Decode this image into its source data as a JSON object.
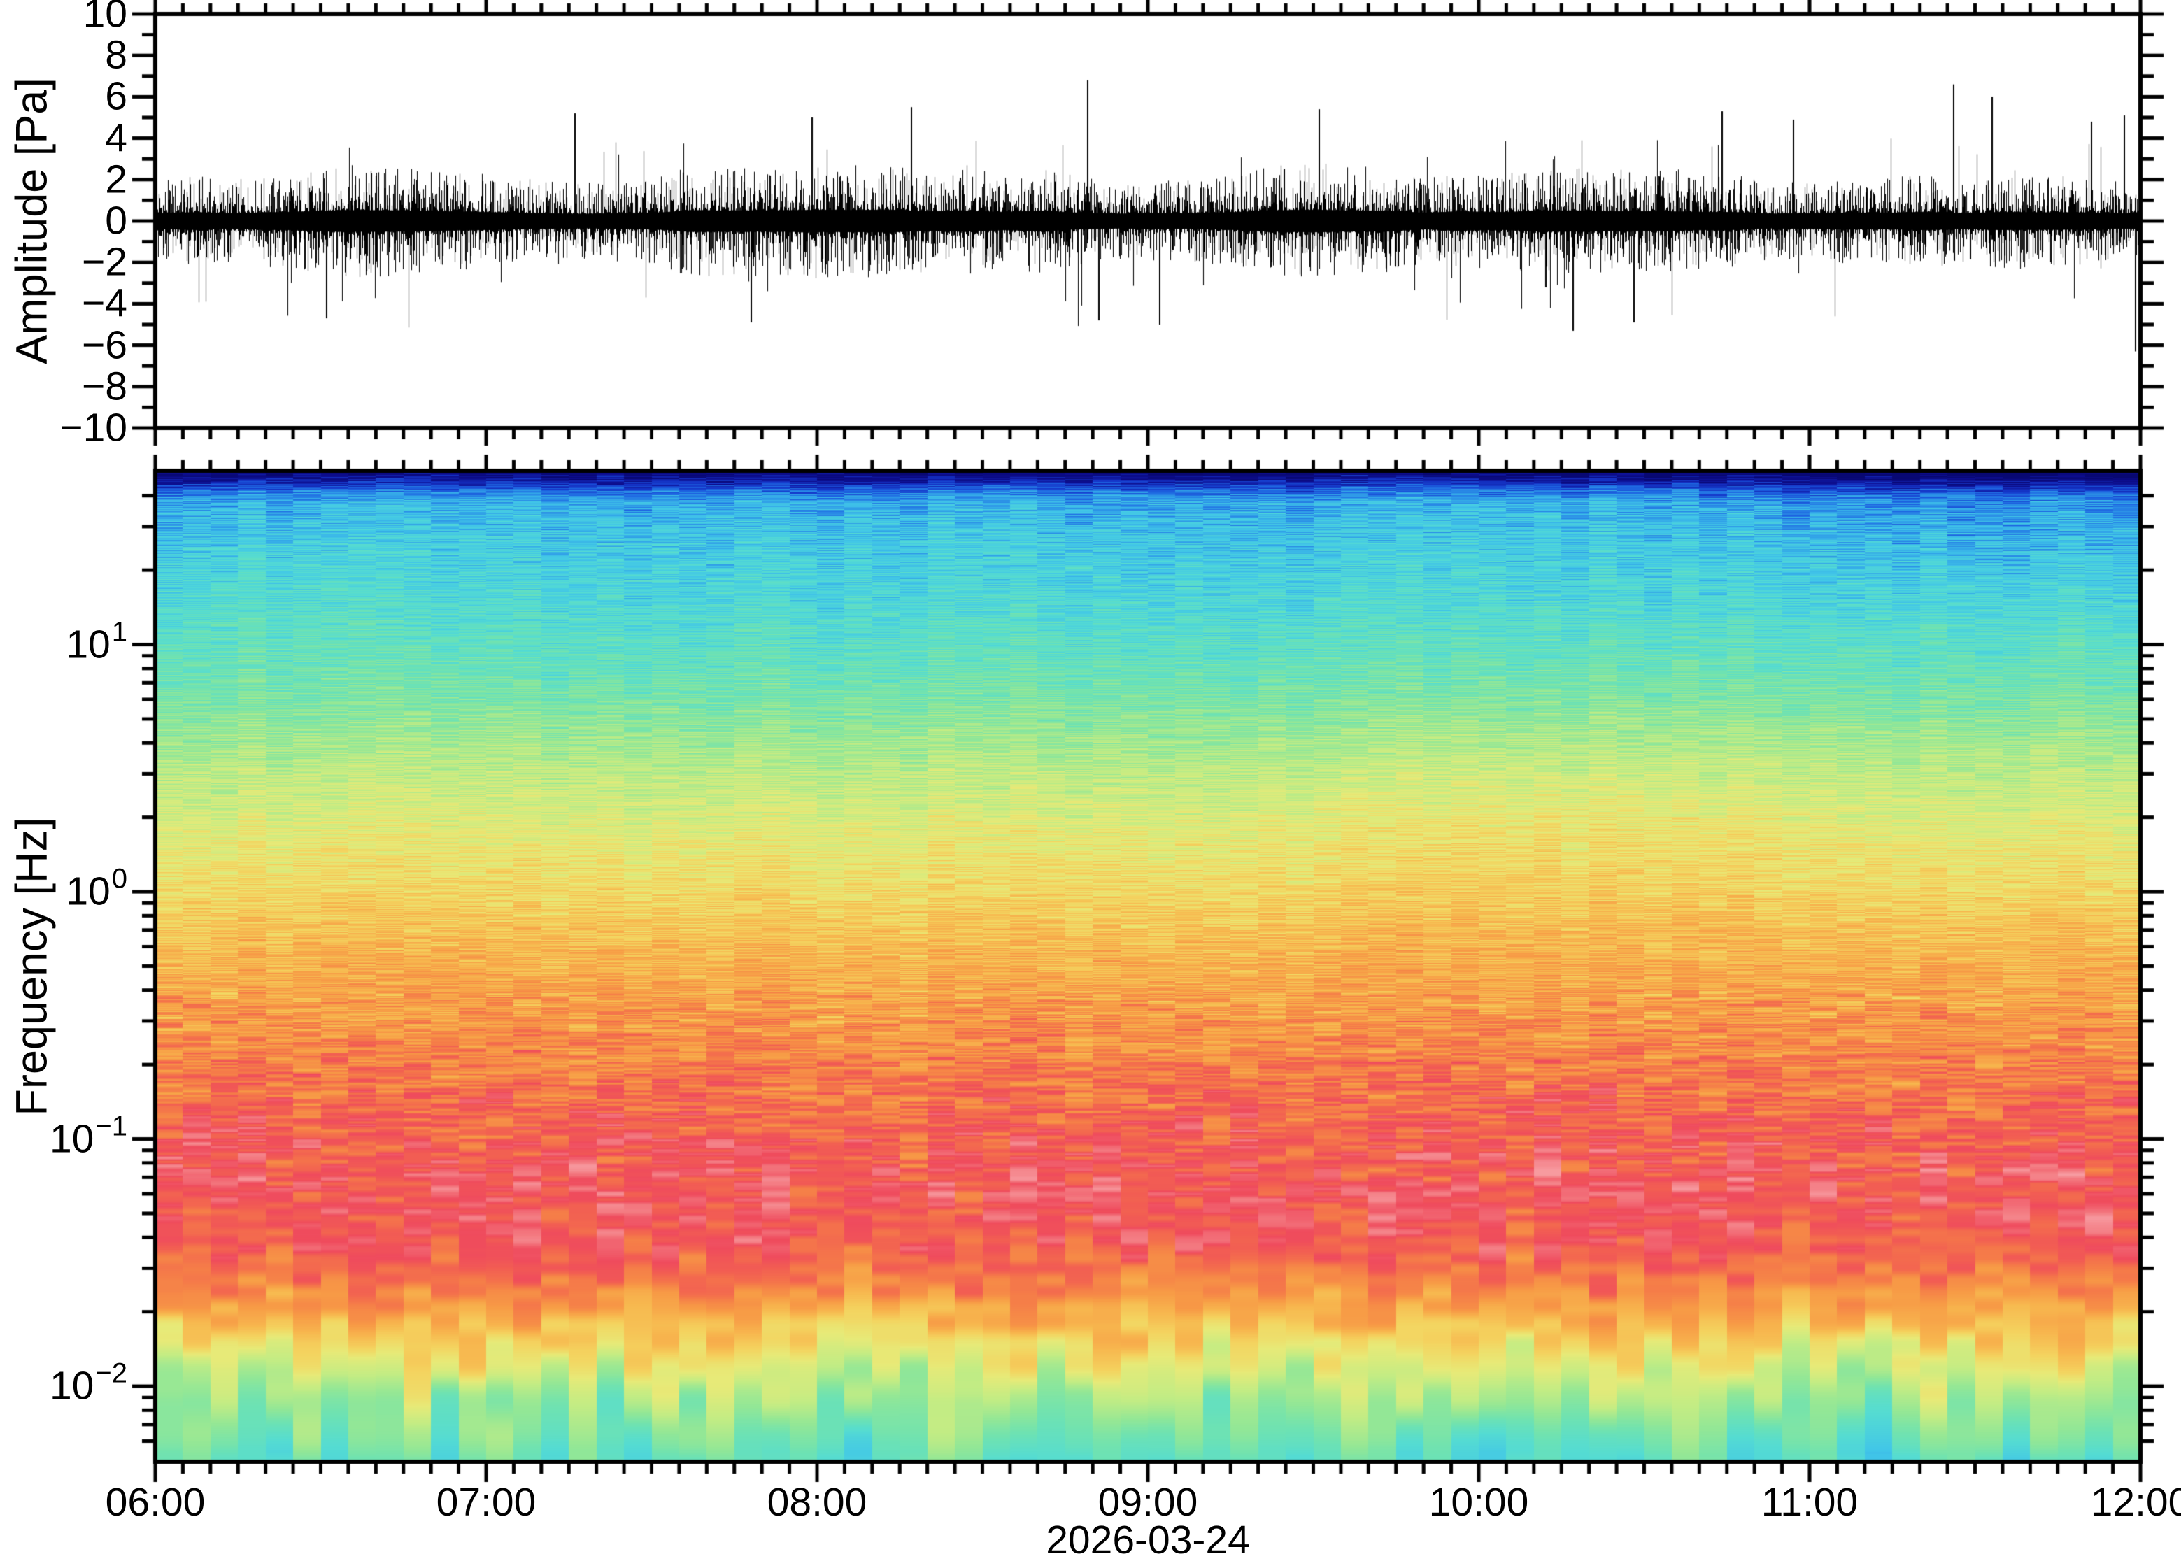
{
  "figure": {
    "background_color": "#ffffff",
    "frame_color": "#000000",
    "text_color": "#000000"
  },
  "panels": {
    "top": {
      "ylabel": "Amplitude [Pa]",
      "ylim": [
        -10,
        10
      ],
      "ytick_step": 2,
      "yticks": [
        {
          "v": 10,
          "label": "10"
        },
        {
          "v": 8,
          "label": "8"
        },
        {
          "v": 6,
          "label": "6"
        },
        {
          "v": 4,
          "label": "4"
        },
        {
          "v": 2,
          "label": "2"
        },
        {
          "v": 0,
          "label": "0"
        },
        {
          "v": -2,
          "label": "−2"
        },
        {
          "v": -4,
          "label": "−4"
        },
        {
          "v": -6,
          "label": "−6"
        },
        {
          "v": -8,
          "label": "−8"
        },
        {
          "v": -10,
          "label": "−10"
        }
      ]
    },
    "bottom": {
      "ylabel": "Frequency [Hz]",
      "yscale": "log",
      "ylim_hz": [
        0.005,
        50
      ],
      "yticks": [
        {
          "log": 1,
          "base": "10",
          "exp": "1"
        },
        {
          "log": 0,
          "base": "10",
          "exp": "0"
        },
        {
          "log": -1,
          "base": "10",
          "exp": "−1"
        },
        {
          "log": -2,
          "base": "10",
          "exp": "−2"
        }
      ]
    }
  },
  "xaxis": {
    "start": "06:00",
    "end": "12:00",
    "major_tick_hours": 1,
    "minor_tick_minutes": 5,
    "ticks": [
      {
        "h": 6,
        "label": "06:00"
      },
      {
        "h": 7,
        "label": "07:00"
      },
      {
        "h": 8,
        "label": "08:00"
      },
      {
        "h": 9,
        "label": "09:00"
      },
      {
        "h": 10,
        "label": "10:00"
      },
      {
        "h": 11,
        "label": "11:00"
      },
      {
        "h": 12,
        "label": "12:00"
      }
    ],
    "date_label": "2026-03-24"
  },
  "chart_data": [
    {
      "type": "line",
      "name": "pressure-waveform",
      "ylabel": "Amplitude [Pa]",
      "units": "Pa",
      "ylim": [
        -10,
        10
      ],
      "x_start": "06:00",
      "x_end": "12:00",
      "description": "Continuous zero-mean broadband infrasound pressure trace; dense noise core about ±1 Pa with frequent excursions to ±2.5 Pa and scattered spikes of ±4–7 Pa.",
      "rms_pa": 0.9,
      "typical_envelope_pa": [
        -2.5,
        2.5
      ],
      "max_pa": 6.8,
      "min_pa": -6.3,
      "notable_spikes": [
        {
          "t": "06:31",
          "v": -4.7
        },
        {
          "t": "07:16",
          "v": 5.2
        },
        {
          "t": "07:48",
          "v": -4.9
        },
        {
          "t": "07:59",
          "v": 5.0
        },
        {
          "t": "08:17",
          "v": 5.5
        },
        {
          "t": "08:49",
          "v": 6.8
        },
        {
          "t": "08:51",
          "v": -4.8
        },
        {
          "t": "09:02",
          "v": -5.0
        },
        {
          "t": "09:31",
          "v": 5.4
        },
        {
          "t": "10:17",
          "v": -5.3
        },
        {
          "t": "10:28",
          "v": -4.9
        },
        {
          "t": "10:44",
          "v": 5.3
        },
        {
          "t": "10:57",
          "v": 4.9
        },
        {
          "t": "11:26",
          "v": 6.6
        },
        {
          "t": "11:33",
          "v": 6.0
        },
        {
          "t": "11:51",
          "v": 4.8
        },
        {
          "t": "11:57",
          "v": 5.1
        },
        {
          "t": "11:59",
          "v": -6.3
        }
      ]
    },
    {
      "type": "heatmap",
      "name": "spectrogram",
      "ylabel": "Frequency [Hz]",
      "yscale": "log",
      "ylim_hz": [
        0.005,
        50
      ],
      "x_start": "06:00",
      "x_end": "12:00",
      "column_minutes": 5,
      "colormap": [
        [
          0.0,
          "#08086e"
        ],
        [
          0.04,
          "#0d0d8e"
        ],
        [
          0.08,
          "#1535c8"
        ],
        [
          0.12,
          "#1e66e2"
        ],
        [
          0.16,
          "#2f9ce8"
        ],
        [
          0.2,
          "#41c6e8"
        ],
        [
          0.26,
          "#55dcd2"
        ],
        [
          0.32,
          "#6ee2b2"
        ],
        [
          0.38,
          "#93e796"
        ],
        [
          0.45,
          "#c3ec84"
        ],
        [
          0.52,
          "#e7ea78"
        ],
        [
          0.58,
          "#f4d35f"
        ],
        [
          0.64,
          "#f7b64e"
        ],
        [
          0.7,
          "#f79b46"
        ],
        [
          0.76,
          "#f57e48"
        ],
        [
          0.82,
          "#f25f52"
        ],
        [
          0.87,
          "#ef4b5d"
        ],
        [
          0.92,
          "#f3787f"
        ],
        [
          1.0,
          "#f9adb2"
        ]
      ],
      "power_profile": [
        [
          1.706,
          0.012
        ],
        [
          1.67,
          0.05
        ],
        [
          1.63,
          0.12
        ],
        [
          1.58,
          0.18
        ],
        [
          1.45,
          0.21
        ],
        [
          1.18,
          0.25
        ],
        [
          0.93,
          0.3
        ],
        [
          0.78,
          0.34
        ],
        [
          0.5,
          0.44
        ],
        [
          0.21,
          0.52
        ],
        [
          0.0,
          0.57
        ],
        [
          -0.21,
          0.63
        ],
        [
          -0.49,
          0.7
        ],
        [
          -0.78,
          0.78
        ],
        [
          -1.0,
          0.83
        ],
        [
          -1.2,
          0.86
        ],
        [
          -1.42,
          0.84
        ],
        [
          -1.6,
          0.74
        ],
        [
          -1.75,
          0.625
        ],
        [
          -1.9,
          0.52
        ],
        [
          -2.02,
          0.44
        ],
        [
          -2.18,
          0.35
        ],
        [
          -2.305,
          0.29
        ]
      ],
      "noise_sigma": [
        [
          1.7,
          0.03
        ],
        [
          1.5,
          0.045
        ],
        [
          1.0,
          0.05
        ],
        [
          0.0,
          0.055
        ],
        [
          -0.6,
          0.07
        ],
        [
          -1.1,
          0.075
        ],
        [
          -1.5,
          0.06
        ],
        [
          -1.8,
          0.07
        ],
        [
          -2.3,
          0.075
        ]
      ],
      "bands": [
        {
          "range_hz": "43–50",
          "appearance": "very low power, dark navy band at top"
        },
        {
          "range_hz": "8–43",
          "appearance": "low power, blue streaks fading into cyan–teal"
        },
        {
          "range_hz": "0.6–8",
          "appearance": "moderate power, green–yellow to yellow–orange stripes"
        },
        {
          "range_hz": "0.15–0.6",
          "appearance": "high power, orange–red mix"
        },
        {
          "range_hz": "0.025–0.15",
          "appearance": "highest power, red with light-pink patches (microseism band)"
        },
        {
          "range_hz": "0.012–0.025",
          "appearance": "wavy orange–yellow transition band"
        },
        {
          "range_hz": "0.005–0.012",
          "appearance": "low power, yellow-green to green and aqua at bottom"
        }
      ]
    }
  ]
}
